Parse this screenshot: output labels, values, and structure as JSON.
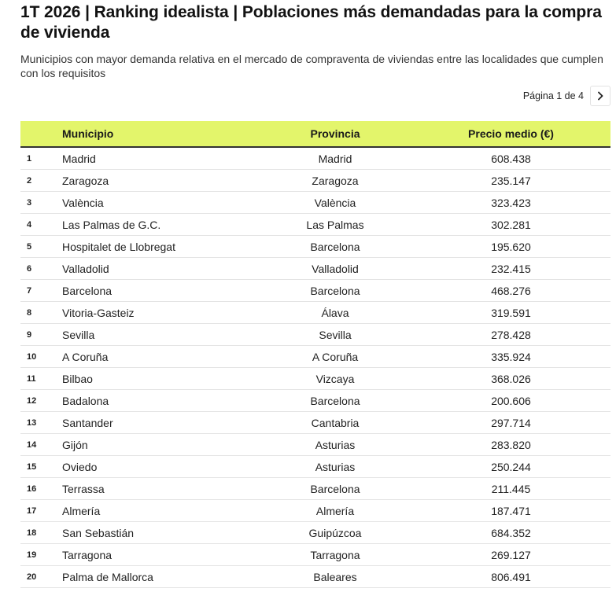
{
  "title": "1T 2026 | Ranking idealista | Poblaciones más demandadas para la compra de vivienda",
  "subtitle": "Municipios con mayor demanda relativa en el mercado de compraventa de viviendas entre las localidades que cumplen con los requisitos",
  "pagination": {
    "label": "Página 1 de 4",
    "next_icon": "chevron-right-icon"
  },
  "colors": {
    "header_bg": "#e3f56b",
    "header_border": "#333333",
    "row_border": "#e4e4e4"
  },
  "table": {
    "columns": {
      "rank": "",
      "municipio": "Municipio",
      "provincia": "Provincia",
      "precio": "Precio medio (€)"
    },
    "rows": [
      {
        "rank": "1",
        "municipio": "Madrid",
        "provincia": "Madrid",
        "precio": "608.438"
      },
      {
        "rank": "2",
        "municipio": "Zaragoza",
        "provincia": "Zaragoza",
        "precio": "235.147"
      },
      {
        "rank": "3",
        "municipio": "València",
        "provincia": "València",
        "precio": "323.423"
      },
      {
        "rank": "4",
        "municipio": "Las Palmas de G.C.",
        "provincia": "Las Palmas",
        "precio": "302.281"
      },
      {
        "rank": "5",
        "municipio": "Hospitalet de Llobregat",
        "provincia": "Barcelona",
        "precio": "195.620"
      },
      {
        "rank": "6",
        "municipio": "Valladolid",
        "provincia": "Valladolid",
        "precio": "232.415"
      },
      {
        "rank": "7",
        "municipio": "Barcelona",
        "provincia": "Barcelona",
        "precio": "468.276"
      },
      {
        "rank": "8",
        "municipio": "Vitoria-Gasteiz",
        "provincia": "Álava",
        "precio": "319.591"
      },
      {
        "rank": "9",
        "municipio": "Sevilla",
        "provincia": "Sevilla",
        "precio": "278.428"
      },
      {
        "rank": "10",
        "municipio": "A Coruña",
        "provincia": "A Coruña",
        "precio": "335.924"
      },
      {
        "rank": "11",
        "municipio": "Bilbao",
        "provincia": "Vizcaya",
        "precio": "368.026"
      },
      {
        "rank": "12",
        "municipio": "Badalona",
        "provincia": "Barcelona",
        "precio": "200.606"
      },
      {
        "rank": "13",
        "municipio": "Santander",
        "provincia": "Cantabria",
        "precio": "297.714"
      },
      {
        "rank": "14",
        "municipio": "Gijón",
        "provincia": "Asturias",
        "precio": "283.820"
      },
      {
        "rank": "15",
        "municipio": "Oviedo",
        "provincia": "Asturias",
        "precio": "250.244"
      },
      {
        "rank": "16",
        "municipio": "Terrassa",
        "provincia": "Barcelona",
        "precio": "211.445"
      },
      {
        "rank": "17",
        "municipio": "Almería",
        "provincia": "Almería",
        "precio": "187.471"
      },
      {
        "rank": "18",
        "municipio": "San Sebastián",
        "provincia": "Guipúzcoa",
        "precio": "684.352"
      },
      {
        "rank": "19",
        "municipio": "Tarragona",
        "provincia": "Tarragona",
        "precio": "269.127"
      },
      {
        "rank": "20",
        "municipio": "Palma de Mallorca",
        "provincia": "Baleares",
        "precio": "806.491"
      }
    ]
  }
}
